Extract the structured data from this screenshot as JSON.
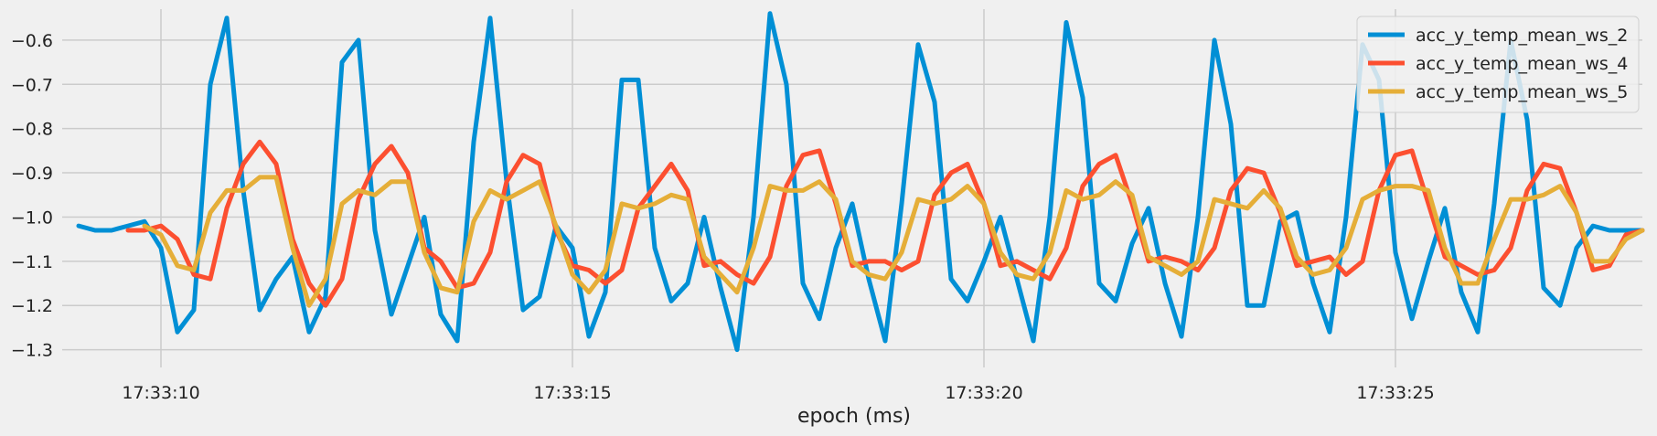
{
  "chart_data": {
    "type": "line",
    "title": "",
    "xlabel": "epoch (ms)",
    "ylabel": "",
    "x_ticks": [
      "17:33:10",
      "17:33:15",
      "17:33:20",
      "17:33:25"
    ],
    "y_ticks": [
      -0.6,
      -0.7,
      -0.8,
      -0.9,
      -1.0,
      -1.1,
      -1.2,
      -1.3
    ],
    "y_tick_labels": [
      "−0.6",
      "−0.7",
      "−0.8",
      "−0.9",
      "−1.0",
      "−1.1",
      "−1.2",
      "−1.3"
    ],
    "xlim": [
      "17:33:08.8",
      "17:33:28.0"
    ],
    "ylim": [
      -1.34,
      -0.53
    ],
    "grid": true,
    "legend_position": "top-right",
    "series": [
      {
        "name": "acc_y_temp_mean_ws_2",
        "color": "#008fd5",
        "x": [
          "17:33:09.0",
          "17:33:09.2",
          "17:33:09.4",
          "17:33:09.6",
          "17:33:09.8",
          "17:33:10.0",
          "17:33:10.2",
          "17:33:10.4",
          "17:33:10.6",
          "17:33:10.8",
          "17:33:11.0",
          "17:33:11.2",
          "17:33:11.4",
          "17:33:11.6",
          "17:33:11.8",
          "17:33:12.0",
          "17:33:12.2",
          "17:33:12.4",
          "17:33:12.6",
          "17:33:12.8",
          "17:33:13.0",
          "17:33:13.2",
          "17:33:13.4",
          "17:33:13.6",
          "17:33:13.8",
          "17:33:14.0",
          "17:33:14.2",
          "17:33:14.4",
          "17:33:14.6",
          "17:33:14.8",
          "17:33:15.0",
          "17:33:15.2",
          "17:33:15.4",
          "17:33:15.6",
          "17:33:15.8",
          "17:33:16.0",
          "17:33:16.2",
          "17:33:16.4",
          "17:33:16.6",
          "17:33:16.8",
          "17:33:17.0",
          "17:33:17.2",
          "17:33:17.4",
          "17:33:17.6",
          "17:33:17.8",
          "17:33:18.0",
          "17:33:18.2",
          "17:33:18.4",
          "17:33:18.6",
          "17:33:18.8",
          "17:33:19.0",
          "17:33:19.2",
          "17:33:19.4",
          "17:33:19.6",
          "17:33:19.8",
          "17:33:20.0",
          "17:33:20.2",
          "17:33:20.4",
          "17:33:20.6",
          "17:33:20.8",
          "17:33:21.0",
          "17:33:21.2",
          "17:33:21.4",
          "17:33:21.6",
          "17:33:21.8",
          "17:33:22.0",
          "17:33:22.2",
          "17:33:22.4",
          "17:33:22.6",
          "17:33:22.8",
          "17:33:23.0",
          "17:33:23.2",
          "17:33:23.4",
          "17:33:23.6",
          "17:33:23.8",
          "17:33:24.0",
          "17:33:24.2",
          "17:33:24.4",
          "17:33:24.6",
          "17:33:24.8",
          "17:33:25.0",
          "17:33:25.2",
          "17:33:25.4",
          "17:33:25.6",
          "17:33:25.8",
          "17:33:26.0",
          "17:33:26.2",
          "17:33:26.4",
          "17:33:26.6",
          "17:33:26.8",
          "17:33:27.0",
          "17:33:27.2",
          "17:33:27.4",
          "17:33:27.6",
          "17:33:27.8",
          "17:33:28.0"
        ],
        "values": [
          -1.02,
          -1.03,
          -1.03,
          -1.02,
          -1.01,
          -1.07,
          -1.26,
          -1.21,
          -0.7,
          -0.55,
          -0.94,
          -1.21,
          -1.14,
          -1.09,
          -1.26,
          -1.18,
          -0.65,
          -0.6,
          -1.03,
          -1.22,
          -1.11,
          -1.0,
          -1.22,
          -1.28,
          -0.83,
          -0.55,
          -0.92,
          -1.21,
          -1.18,
          -1.02,
          -1.07,
          -1.27,
          -1.17,
          -0.69,
          -0.69,
          -1.07,
          -1.19,
          -1.15,
          -1.0,
          -1.16,
          -1.3,
          -1.0,
          -0.54,
          -0.7,
          -1.15,
          -1.23,
          -1.07,
          -0.97,
          -1.14,
          -1.28,
          -0.97,
          -0.61,
          -0.74,
          -1.14,
          -1.19,
          -1.1,
          -1.0,
          -1.14,
          -1.28,
          -1.0,
          -0.56,
          -0.73,
          -1.15,
          -1.19,
          -1.06,
          -0.98,
          -1.15,
          -1.27,
          -1.0,
          -0.6,
          -0.79,
          -1.2,
          -1.2,
          -1.01,
          -0.99,
          -1.15,
          -1.26,
          -1.0,
          -0.61,
          -0.69,
          -1.08,
          -1.23,
          -1.1,
          -0.98,
          -1.17,
          -1.26,
          -0.97,
          -0.6,
          -0.78,
          -1.16,
          -1.2,
          -1.07,
          -1.02,
          -1.03,
          -1.03,
          -1.03
        ]
      },
      {
        "name": "acc_y_temp_mean_ws_4",
        "color": "#fc4f30",
        "x": [
          "17:33:09.6",
          "17:33:09.8",
          "17:33:10.0",
          "17:33:10.2",
          "17:33:10.4",
          "17:33:10.6",
          "17:33:10.8",
          "17:33:11.0",
          "17:33:11.2",
          "17:33:11.4",
          "17:33:11.6",
          "17:33:11.8",
          "17:33:12.0",
          "17:33:12.2",
          "17:33:12.4",
          "17:33:12.6",
          "17:33:12.8",
          "17:33:13.0",
          "17:33:13.2",
          "17:33:13.4",
          "17:33:13.6",
          "17:33:13.8",
          "17:33:14.0",
          "17:33:14.2",
          "17:33:14.4",
          "17:33:14.6",
          "17:33:14.8",
          "17:33:15.0",
          "17:33:15.2",
          "17:33:15.4",
          "17:33:15.6",
          "17:33:15.8",
          "17:33:16.0",
          "17:33:16.2",
          "17:33:16.4",
          "17:33:16.6",
          "17:33:16.8",
          "17:33:17.0",
          "17:33:17.2",
          "17:33:17.4",
          "17:33:17.6",
          "17:33:17.8",
          "17:33:18.0",
          "17:33:18.2",
          "17:33:18.4",
          "17:33:18.6",
          "17:33:18.8",
          "17:33:19.0",
          "17:33:19.2",
          "17:33:19.4",
          "17:33:19.6",
          "17:33:19.8",
          "17:33:20.0",
          "17:33:20.2",
          "17:33:20.4",
          "17:33:20.6",
          "17:33:20.8",
          "17:33:21.0",
          "17:33:21.2",
          "17:33:21.4",
          "17:33:21.6",
          "17:33:21.8",
          "17:33:22.0",
          "17:33:22.2",
          "17:33:22.4",
          "17:33:22.6",
          "17:33:22.8",
          "17:33:23.0",
          "17:33:23.2",
          "17:33:23.4",
          "17:33:23.6",
          "17:33:23.8",
          "17:33:24.0",
          "17:33:24.2",
          "17:33:24.4",
          "17:33:24.6",
          "17:33:24.8",
          "17:33:25.0",
          "17:33:25.2",
          "17:33:25.4",
          "17:33:25.6",
          "17:33:25.8",
          "17:33:26.0",
          "17:33:26.2",
          "17:33:26.4",
          "17:33:26.6",
          "17:33:26.8",
          "17:33:27.0",
          "17:33:27.2",
          "17:33:27.4",
          "17:33:27.6",
          "17:33:27.8",
          "17:33:28.0"
        ],
        "values": [
          -1.03,
          -1.03,
          -1.02,
          -1.05,
          -1.13,
          -1.14,
          -0.98,
          -0.88,
          -0.83,
          -0.88,
          -1.05,
          -1.15,
          -1.2,
          -1.14,
          -0.96,
          -0.88,
          -0.84,
          -0.9,
          -1.07,
          -1.1,
          -1.16,
          -1.15,
          -1.08,
          -0.92,
          -0.86,
          -0.88,
          -1.03,
          -1.11,
          -1.12,
          -1.15,
          -1.12,
          -0.98,
          -0.93,
          -0.88,
          -0.94,
          -1.11,
          -1.1,
          -1.13,
          -1.15,
          -1.09,
          -0.93,
          -0.86,
          -0.85,
          -0.97,
          -1.11,
          -1.1,
          -1.1,
          -1.12,
          -1.1,
          -0.95,
          -0.9,
          -0.88,
          -0.97,
          -1.11,
          -1.1,
          -1.12,
          -1.14,
          -1.07,
          -0.93,
          -0.88,
          -0.86,
          -0.97,
          -1.1,
          -1.09,
          -1.1,
          -1.12,
          -1.07,
          -0.94,
          -0.89,
          -0.9,
          -0.99,
          -1.11,
          -1.1,
          -1.09,
          -1.13,
          -1.1,
          -0.94,
          -0.86,
          -0.85,
          -0.97,
          -1.09,
          -1.11,
          -1.13,
          -1.12,
          -1.07,
          -0.94,
          -0.88,
          -0.89,
          -0.99,
          -1.12,
          -1.11,
          -1.04,
          -1.03
        ]
      },
      {
        "name": "acc_y_temp_mean_ws_5",
        "color": "#e5ae38",
        "x": [
          "17:33:09.8",
          "17:33:10.0",
          "17:33:10.2",
          "17:33:10.4",
          "17:33:10.6",
          "17:33:10.8",
          "17:33:11.0",
          "17:33:11.2",
          "17:33:11.4",
          "17:33:11.6",
          "17:33:11.8",
          "17:33:12.0",
          "17:33:12.2",
          "17:33:12.4",
          "17:33:12.6",
          "17:33:12.8",
          "17:33:13.0",
          "17:33:13.2",
          "17:33:13.4",
          "17:33:13.6",
          "17:33:13.8",
          "17:33:14.0",
          "17:33:14.2",
          "17:33:14.4",
          "17:33:14.6",
          "17:33:14.8",
          "17:33:15.0",
          "17:33:15.2",
          "17:33:15.4",
          "17:33:15.6",
          "17:33:15.8",
          "17:33:16.0",
          "17:33:16.2",
          "17:33:16.4",
          "17:33:16.6",
          "17:33:16.8",
          "17:33:17.0",
          "17:33:17.2",
          "17:33:17.4",
          "17:33:17.6",
          "17:33:17.8",
          "17:33:18.0",
          "17:33:18.2",
          "17:33:18.4",
          "17:33:18.6",
          "17:33:18.8",
          "17:33:19.0",
          "17:33:19.2",
          "17:33:19.4",
          "17:33:19.6",
          "17:33:19.8",
          "17:33:20.0",
          "17:33:20.2",
          "17:33:20.4",
          "17:33:20.6",
          "17:33:20.8",
          "17:33:21.0",
          "17:33:21.2",
          "17:33:21.4",
          "17:33:21.6",
          "17:33:21.8",
          "17:33:22.0",
          "17:33:22.2",
          "17:33:22.4",
          "17:33:22.6",
          "17:33:22.8",
          "17:33:23.0",
          "17:33:23.2",
          "17:33:23.4",
          "17:33:23.6",
          "17:33:23.8",
          "17:33:24.0",
          "17:33:24.2",
          "17:33:24.4",
          "17:33:24.6",
          "17:33:24.8",
          "17:33:25.0",
          "17:33:25.2",
          "17:33:25.4",
          "17:33:25.6",
          "17:33:25.8",
          "17:33:26.0",
          "17:33:26.2",
          "17:33:26.4",
          "17:33:26.6",
          "17:33:26.8",
          "17:33:27.0",
          "17:33:27.2",
          "17:33:27.4",
          "17:33:27.6",
          "17:33:27.8",
          "17:33:28.0"
        ],
        "values": [
          -1.02,
          -1.04,
          -1.11,
          -1.12,
          -0.99,
          -0.94,
          -0.94,
          -0.91,
          -0.91,
          -1.07,
          -1.2,
          -1.14,
          -0.97,
          -0.94,
          -0.95,
          -0.92,
          -0.92,
          -1.08,
          -1.16,
          -1.17,
          -1.01,
          -0.94,
          -0.96,
          -0.94,
          -0.92,
          -1.02,
          -1.13,
          -1.17,
          -1.12,
          -0.97,
          -0.98,
          -0.97,
          -0.95,
          -0.96,
          -1.09,
          -1.13,
          -1.17,
          -1.07,
          -0.93,
          -0.94,
          -0.94,
          -0.92,
          -0.96,
          -1.1,
          -1.13,
          -1.14,
          -1.08,
          -0.96,
          -0.97,
          -0.96,
          -0.93,
          -0.97,
          -1.08,
          -1.13,
          -1.14,
          -1.08,
          -0.94,
          -0.96,
          -0.95,
          -0.92,
          -0.95,
          -1.09,
          -1.11,
          -1.13,
          -1.1,
          -0.96,
          -0.97,
          -0.98,
          -0.94,
          -0.98,
          -1.09,
          -1.13,
          -1.12,
          -1.07,
          -0.96,
          -0.94,
          -0.93,
          -0.93,
          -0.94,
          -1.07,
          -1.15,
          -1.15,
          -1.05,
          -0.96,
          -0.96,
          -0.95,
          -0.93,
          -0.99,
          -1.1,
          -1.1,
          -1.05,
          -1.03
        ]
      }
    ]
  }
}
